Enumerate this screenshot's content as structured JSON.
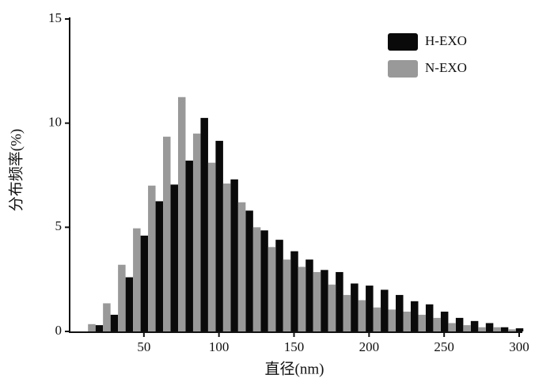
{
  "chart_data": {
    "type": "bar",
    "x_label": "直径(nm)",
    "y_label": "分布频率(%)",
    "x": [
      20,
      30,
      40,
      50,
      60,
      70,
      80,
      90,
      100,
      110,
      120,
      130,
      140,
      150,
      160,
      170,
      180,
      190,
      200,
      210,
      220,
      230,
      240,
      250,
      260,
      270,
      280,
      290,
      300
    ],
    "series": [
      {
        "name": "H-EXO",
        "color": "#0a0a0a",
        "values": [
          0.3,
          0.8,
          2.6,
          4.6,
          6.25,
          7.05,
          8.2,
          10.25,
          9.15,
          7.3,
          5.8,
          4.85,
          4.4,
          3.85,
          3.45,
          2.95,
          2.85,
          2.3,
          2.2,
          2.0,
          1.75,
          1.45,
          1.3,
          0.95,
          0.65,
          0.5,
          0.4,
          0.2,
          0.15
        ]
      },
      {
        "name": "N-EXO",
        "color": "#999999",
        "values": [
          0.35,
          1.35,
          3.2,
          4.95,
          7.0,
          9.35,
          11.25,
          9.5,
          8.1,
          7.1,
          6.2,
          5.0,
          4.05,
          3.45,
          3.1,
          2.85,
          2.25,
          1.75,
          1.5,
          1.15,
          1.05,
          0.95,
          0.8,
          0.65,
          0.4,
          0.3,
          0.2,
          0.2,
          0.1
        ]
      }
    ],
    "xlim": [
      0,
      300
    ],
    "ylim": [
      0,
      15
    ],
    "xticks": [
      50,
      100,
      150,
      200,
      250,
      300
    ],
    "yticks": [
      0,
      5,
      10,
      15
    ],
    "legend": "upper right"
  }
}
